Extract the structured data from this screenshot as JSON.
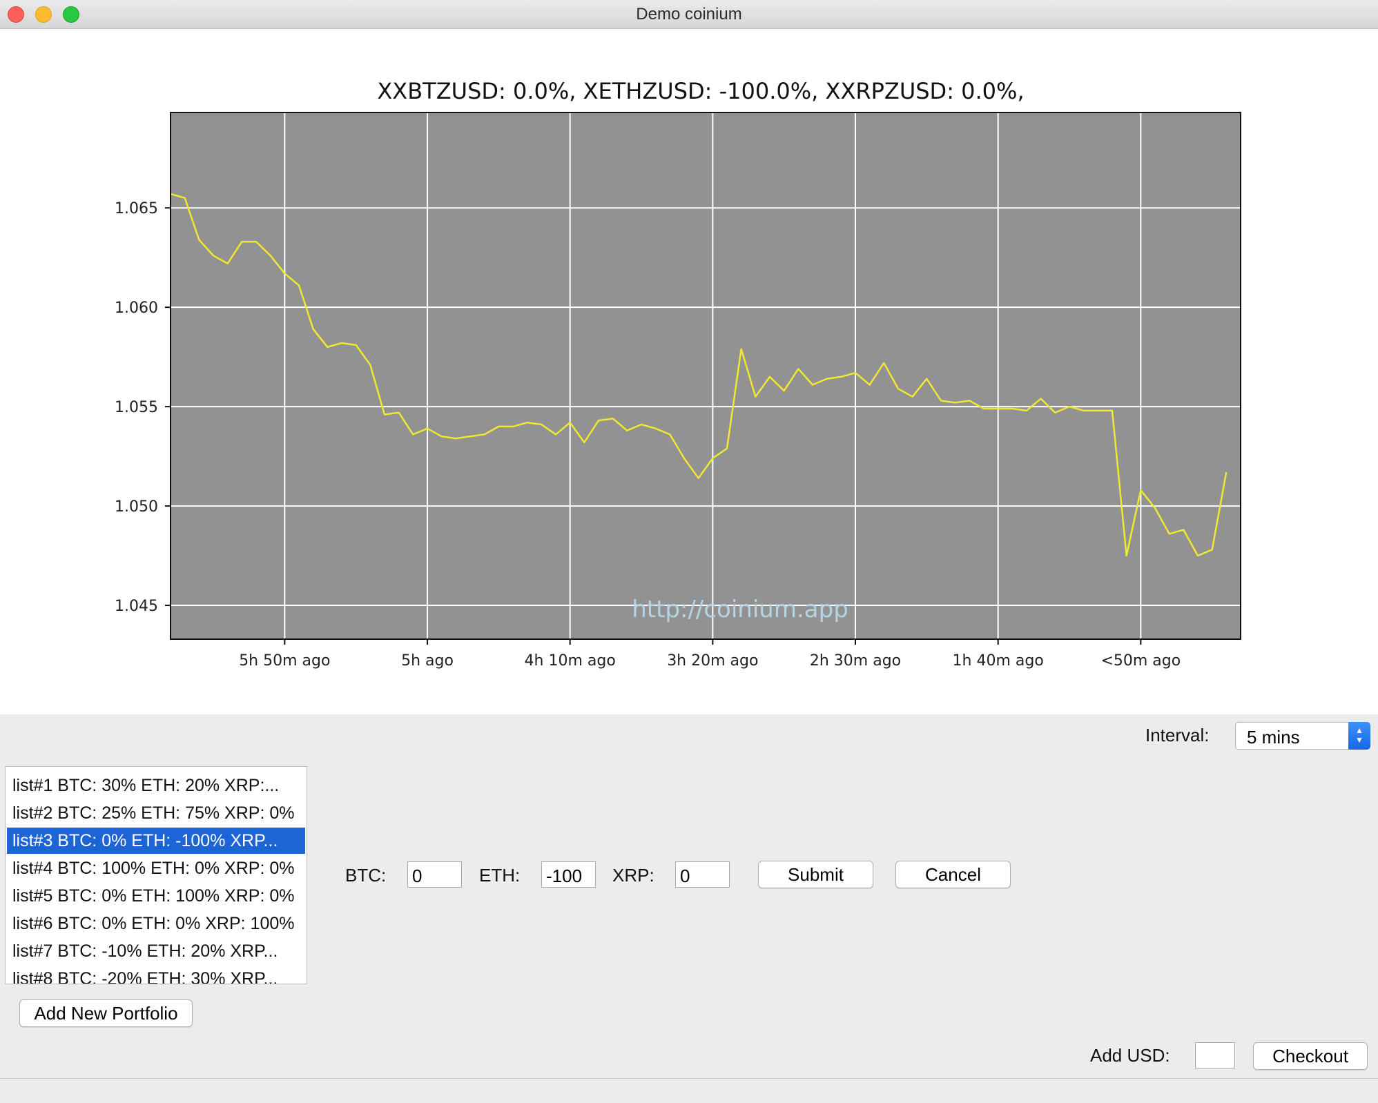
{
  "window": {
    "title": "Demo coinium"
  },
  "chart_data": {
    "type": "line",
    "title": "XXBTZUSD: 0.0%, XETHZUSD: -100.0%, XXRPZUSD: 0.0%,",
    "xlabel": "",
    "ylabel": "",
    "ylim": [
      1.0433,
      1.0698
    ],
    "y_ticks": [
      "1.045",
      "1.050",
      "1.055",
      "1.060",
      "1.065"
    ],
    "y_tick_values": [
      1.045,
      1.05,
      1.055,
      1.06,
      1.065
    ],
    "x_tick_labels": [
      "5h 50m  ago",
      "5h  ago",
      "4h 10m  ago",
      "3h 20m  ago",
      "2h 30m  ago",
      "1h 40m  ago",
      "<50m  ago"
    ],
    "x_tick_minutes_ago": [
      350,
      300,
      250,
      200,
      150,
      100,
      50
    ],
    "x_range_minutes_ago": [
      390,
      15
    ],
    "grid": true,
    "background": "#929292",
    "line_color": "#f0e830",
    "watermark": "http://coinium.app",
    "series": [
      {
        "x_minutes_ago": [
          390,
          385,
          380,
          375,
          370,
          365,
          360,
          355,
          350,
          345,
          340,
          335,
          330,
          325,
          320,
          315,
          310,
          305,
          300,
          295,
          290,
          285,
          280,
          275,
          270,
          265,
          260,
          255,
          250,
          245,
          240,
          235,
          230,
          225,
          220,
          215,
          210,
          205,
          200,
          195,
          190,
          185,
          180,
          175,
          170,
          165,
          160,
          155,
          150,
          145,
          140,
          135,
          130,
          125,
          120,
          115,
          110,
          105,
          100,
          95,
          90,
          85,
          80,
          75,
          70,
          65,
          60,
          55,
          50,
          45,
          40,
          35,
          30,
          25,
          20
        ],
        "values": [
          1.0657,
          1.0655,
          1.0634,
          1.0626,
          1.0622,
          1.0633,
          1.0633,
          1.0626,
          1.0617,
          1.0611,
          1.0589,
          1.058,
          1.0582,
          1.0581,
          1.0571,
          1.0546,
          1.0547,
          1.0536,
          1.0539,
          1.0535,
          1.0534,
          1.0535,
          1.0536,
          1.054,
          1.054,
          1.0542,
          1.0541,
          1.0536,
          1.0542,
          1.0532,
          1.0543,
          1.0544,
          1.0538,
          1.0541,
          1.0539,
          1.0536,
          1.0524,
          1.0514,
          1.0524,
          1.0529,
          1.0579,
          1.0555,
          1.0565,
          1.0558,
          1.0569,
          1.0561,
          1.0564,
          1.0565,
          1.0567,
          1.0561,
          1.0572,
          1.0559,
          1.0555,
          1.0564,
          1.0553,
          1.0552,
          1.0553,
          1.0549,
          1.0549,
          1.0549,
          1.0548,
          1.0554,
          1.0547,
          1.055,
          1.0548,
          1.0548,
          1.0548,
          1.0475,
          1.0508,
          1.0499,
          1.0486,
          1.0488,
          1.0475,
          1.0478,
          1.0517
        ]
      }
    ]
  },
  "interval": {
    "label": "Interval:",
    "value": "5 mins"
  },
  "portfolios": [
    "list#1 BTC: 30% ETH: 20% XRP:...",
    "list#2 BTC: 25% ETH: 75% XRP: 0%",
    "list#3 BTC: 0% ETH: -100% XRP...",
    "list#4 BTC: 100% ETH: 0% XRP: 0%",
    "list#5 BTC: 0% ETH: 100% XRP: 0%",
    "list#6 BTC: 0% ETH: 0% XRP: 100%",
    "list#7 BTC: -10% ETH: 20% XRP...",
    "list#8 BTC: -20% ETH: 30% XRP..."
  ],
  "editor": {
    "btc_label": "BTC:",
    "btc_value": "0",
    "eth_label": "ETH:",
    "eth_value": "-100",
    "xrp_label": "XRP:",
    "xrp_value": "0",
    "submit_label": "Submit",
    "cancel_label": "Cancel"
  },
  "add_portfolio_label": "Add New Portfolio",
  "checkout": {
    "add_usd_label": "Add USD:",
    "usd_value": "",
    "checkout_label": "Checkout"
  }
}
